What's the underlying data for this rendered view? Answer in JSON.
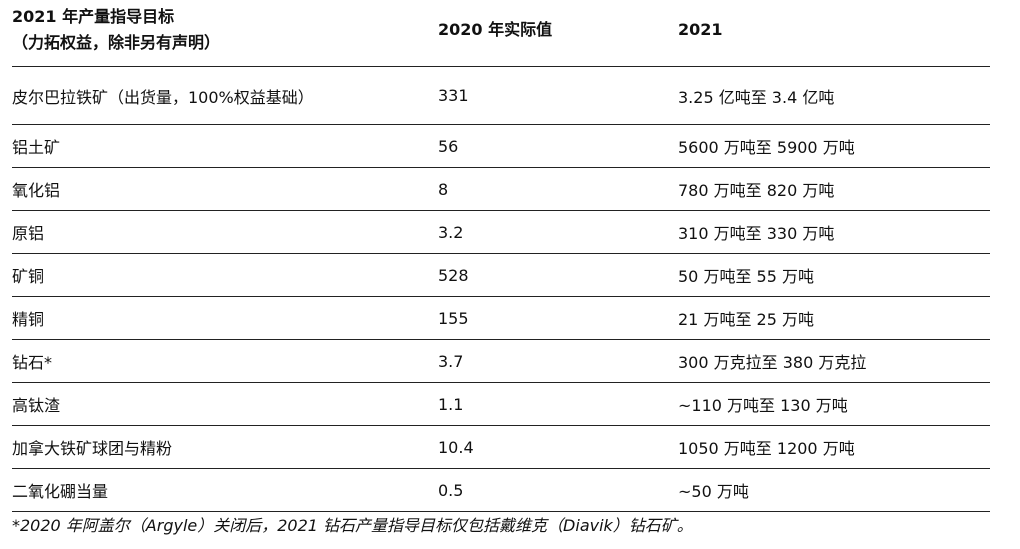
{
  "table": {
    "header": {
      "col1_line1": "2021 年产量指导目标",
      "col1_line2": "（力拓权益，除非另有声明）",
      "col2": "2020 年实际值",
      "col3": "2021"
    },
    "rows": [
      {
        "name": "皮尔巴拉铁矿（出货量，100%权益基础）",
        "actual_2020": "331",
        "guidance_2021": "3.25 亿吨至 3.4 亿吨"
      },
      {
        "name": "铝土矿",
        "actual_2020": "56",
        "guidance_2021": "5600 万吨至 5900 万吨"
      },
      {
        "name": "氧化铝",
        "actual_2020": "8",
        "guidance_2021": "780 万吨至 820 万吨"
      },
      {
        "name": "原铝",
        "actual_2020": "3.2",
        "guidance_2021": "310 万吨至 330 万吨"
      },
      {
        "name": "矿铜",
        "actual_2020": "528",
        "guidance_2021": "50 万吨至 55 万吨"
      },
      {
        "name": "精铜",
        "actual_2020": "155",
        "guidance_2021": "21 万吨至 25 万吨"
      },
      {
        "name": "钻石*",
        "actual_2020": "3.7",
        "guidance_2021": "300 万克拉至 380 万克拉"
      },
      {
        "name": "高钛渣",
        "actual_2020": "1.1",
        "guidance_2021": "~110 万吨至 130 万吨"
      },
      {
        "name": "加拿大铁矿球团与精粉",
        "actual_2020": "10.4",
        "guidance_2021": "1050 万吨至 1200 万吨"
      },
      {
        "name": "二氧化硼当量",
        "actual_2020": "0.5",
        "guidance_2021": "~50 万吨"
      }
    ]
  },
  "footnote": "*2020 年阿盖尔（Argyle）关闭后，2021 钻石产量指导目标仅包括戴维克（Diavik）钻石矿。"
}
